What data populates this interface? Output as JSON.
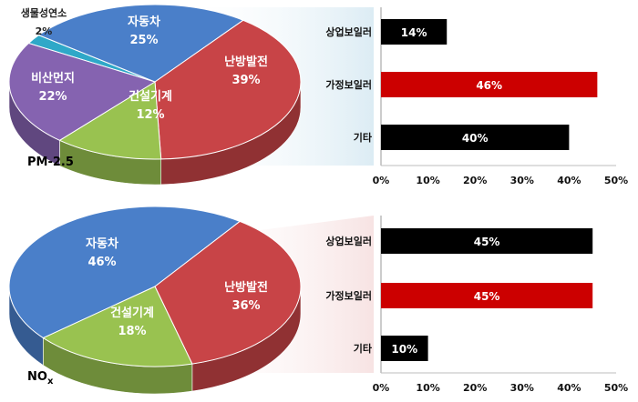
{
  "chart_data": [
    {
      "type": "pie",
      "label": "PM-2.5",
      "slices": [
        {
          "name": "생물성연소",
          "value": 2,
          "label": "2%",
          "color": "#2fa8c8"
        },
        {
          "name": "자동차",
          "value": 25,
          "label": "25%",
          "color": "#4a7fc9"
        },
        {
          "name": "난방발전",
          "value": 39,
          "label": "39%",
          "color": "#c84447"
        },
        {
          "name": "건설기계",
          "value": 12,
          "label": "12%",
          "color": "#99c250"
        },
        {
          "name": "비산먼지",
          "value": 22,
          "label": "22%",
          "color": "#8563b0"
        }
      ]
    },
    {
      "type": "bar",
      "orientation": "horizontal",
      "categories": [
        "상업보일러",
        "가정보일러",
        "기타"
      ],
      "values": [
        14,
        46,
        40
      ],
      "labels": [
        "14%",
        "46%",
        "40%"
      ],
      "colors": [
        "#000000",
        "#cc0000",
        "#000000"
      ],
      "xlim": [
        0,
        50
      ],
      "xticks": [
        "0%",
        "10%",
        "20%",
        "30%",
        "40%",
        "50%"
      ]
    },
    {
      "type": "pie",
      "label": "NOx",
      "slices": [
        {
          "name": "자동차",
          "value": 46,
          "label": "46%",
          "color": "#4a7fc9"
        },
        {
          "name": "난방발전",
          "value": 36,
          "label": "36%",
          "color": "#c84447"
        },
        {
          "name": "건설기계",
          "value": 18,
          "label": "18%",
          "color": "#99c250"
        }
      ]
    },
    {
      "type": "bar",
      "orientation": "horizontal",
      "categories": [
        "상업보일러",
        "가정보일러",
        "기타"
      ],
      "values": [
        45,
        45,
        10
      ],
      "labels": [
        "45%",
        "45%",
        "10%"
      ],
      "colors": [
        "#000000",
        "#cc0000",
        "#000000"
      ],
      "xlim": [
        0,
        50
      ],
      "xticks": [
        "0%",
        "10%",
        "20%",
        "30%",
        "40%",
        "50%"
      ]
    }
  ]
}
